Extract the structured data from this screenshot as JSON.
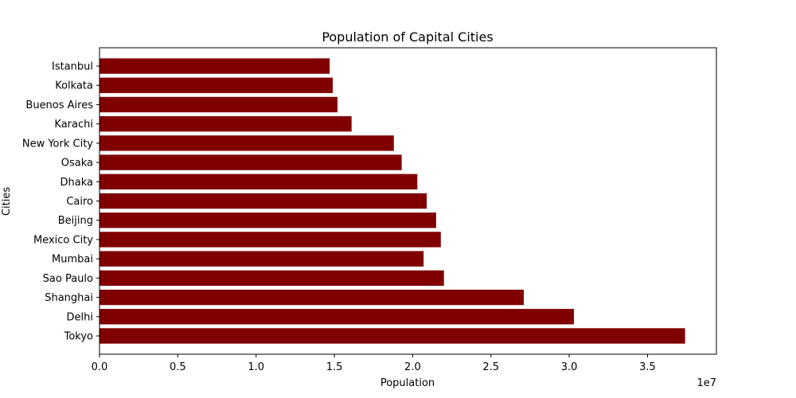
{
  "chart_data": {
    "type": "bar",
    "orientation": "horizontal",
    "title": "Population of Capital Cities",
    "xlabel": "Population",
    "ylabel": "Cities",
    "x_offset_label": "1e7",
    "xlim": [
      0,
      39400000
    ],
    "x_ticks": [
      0,
      5000000,
      10000000,
      15000000,
      20000000,
      25000000,
      30000000,
      35000000
    ],
    "x_tick_labels": [
      "0.0",
      "0.5",
      "1.0",
      "1.5",
      "2.0",
      "2.5",
      "3.0",
      "3.5"
    ],
    "bar_color": "#800000",
    "grid": false,
    "categories": [
      "Tokyo",
      "Delhi",
      "Shanghai",
      "Sao Paulo",
      "Mumbai",
      "Mexico City",
      "Beijing",
      "Cairo",
      "Dhaka",
      "Osaka",
      "New York City",
      "Karachi",
      "Buenos Aires",
      "Kolkata",
      "Istanbul"
    ],
    "values": [
      37400000,
      30300000,
      27100000,
      22000000,
      20700000,
      21800000,
      21500000,
      20900000,
      20300000,
      19300000,
      18800000,
      16100000,
      15200000,
      14900000,
      14700000
    ]
  }
}
